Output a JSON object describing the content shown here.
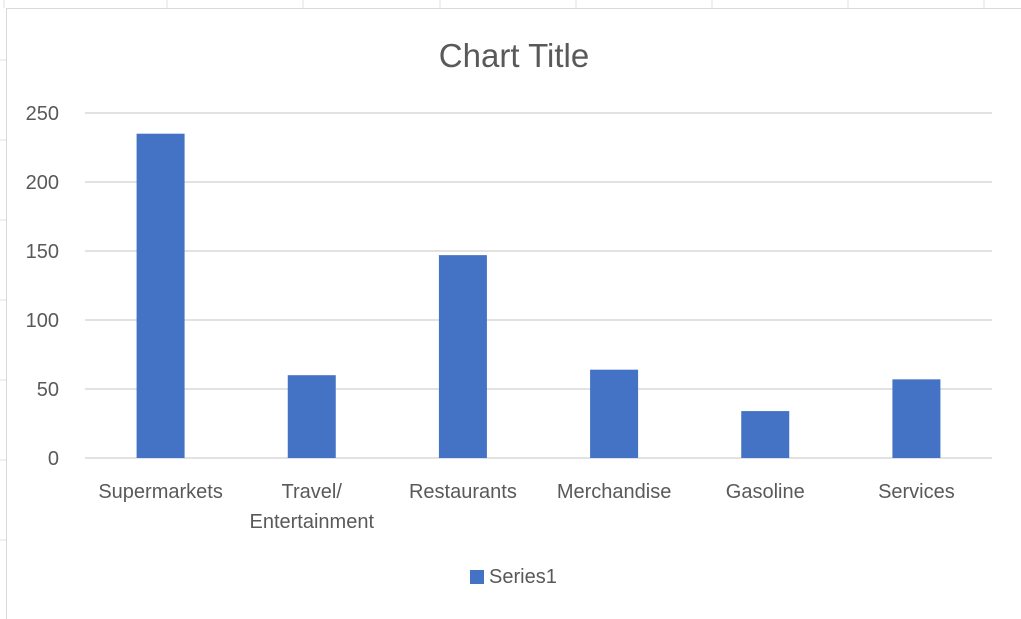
{
  "chart_data": {
    "type": "bar",
    "title": "Chart Title",
    "categories": [
      "Supermarkets",
      "Travel/\nEntertainment",
      "Restaurants",
      "Merchandise",
      "Gasoline",
      "Services"
    ],
    "series": [
      {
        "name": "Series1",
        "values": [
          235,
          60,
          147,
          64,
          34,
          57
        ],
        "color": "#4472C4"
      }
    ],
    "ylim": [
      0,
      250
    ],
    "yticks": [
      0,
      50,
      100,
      150,
      200,
      250
    ],
    "grid": true,
    "legend": "bottom"
  },
  "colors": {
    "gridline": "#d9d9d9",
    "text": "#595959",
    "sheet_grid": "#e0e0e0"
  }
}
